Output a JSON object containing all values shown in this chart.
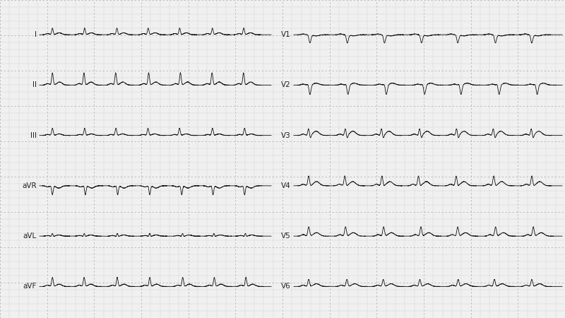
{
  "background_color": "#f0f0f0",
  "grid_color": "#b0b0b0",
  "ecg_line_color": "#111111",
  "leads_left": [
    "I",
    "II",
    "III",
    "aVR",
    "aVL",
    "aVF"
  ],
  "leads_right": [
    "V1",
    "V2",
    "V3",
    "V4",
    "V5",
    "V6"
  ],
  "heart_rate": 72,
  "figsize": [
    8.0,
    4.5
  ],
  "dpi": 100,
  "sample_rate": 500,
  "duration": 6.0,
  "morphologies": {
    "I": {
      "P": [
        0.06,
        0.045,
        0.13
      ],
      "Q": [
        -0.03,
        0.012,
        0.22
      ],
      "R": [
        0.35,
        0.022,
        0.255
      ],
      "S": [
        -0.04,
        0.018,
        0.285
      ],
      "T": [
        0.1,
        0.065,
        0.43
      ]
    },
    "II": {
      "P": [
        0.08,
        0.045,
        0.13
      ],
      "Q": [
        -0.04,
        0.012,
        0.22
      ],
      "R": [
        0.65,
        0.022,
        0.255
      ],
      "S": [
        -0.05,
        0.018,
        0.285
      ],
      "T": [
        0.16,
        0.065,
        0.44
      ]
    },
    "III": {
      "P": [
        0.05,
        0.045,
        0.13
      ],
      "Q": [
        -0.02,
        0.012,
        0.22
      ],
      "R": [
        0.38,
        0.022,
        0.255
      ],
      "S": [
        -0.03,
        0.018,
        0.285
      ],
      "T": [
        0.08,
        0.065,
        0.43
      ]
    },
    "aVR": {
      "P": [
        -0.06,
        0.045,
        0.13
      ],
      "Q": [
        0.02,
        0.012,
        0.22
      ],
      "R": [
        -0.3,
        0.018,
        0.248
      ],
      "S": [
        0.0,
        0.018,
        0.28
      ],
      "T": [
        -0.12,
        0.065,
        0.42
      ],
      "R2": [
        -0.2,
        0.018,
        0.262
      ]
    },
    "aVL": {
      "P": [
        0.03,
        0.045,
        0.13
      ],
      "Q": [
        -0.04,
        0.012,
        0.22
      ],
      "R": [
        0.15,
        0.02,
        0.255
      ],
      "S": [
        -0.06,
        0.018,
        0.28
      ],
      "T": [
        0.06,
        0.065,
        0.42
      ]
    },
    "aVF": {
      "P": [
        0.07,
        0.045,
        0.13
      ],
      "Q": [
        -0.03,
        0.012,
        0.22
      ],
      "R": [
        0.48,
        0.022,
        0.255
      ],
      "S": [
        -0.04,
        0.018,
        0.285
      ],
      "T": [
        0.12,
        0.065,
        0.43
      ]
    },
    "V1": {
      "P": [
        0.04,
        0.04,
        0.13
      ],
      "Q": [
        0.0,
        0.01,
        0.22
      ],
      "R": [
        0.1,
        0.018,
        0.25
      ],
      "S": [
        -0.45,
        0.025,
        0.278
      ],
      "T": [
        -0.06,
        0.065,
        0.42
      ]
    },
    "V2": {
      "P": [
        0.05,
        0.04,
        0.13
      ],
      "Q": [
        0.0,
        0.01,
        0.22
      ],
      "R": [
        0.18,
        0.02,
        0.25
      ],
      "S": [
        -0.55,
        0.025,
        0.278
      ],
      "T": [
        0.1,
        0.065,
        0.42
      ]
    },
    "V3": {
      "P": [
        0.07,
        0.04,
        0.13
      ],
      "Q": [
        -0.05,
        0.015,
        0.22
      ],
      "R": [
        0.45,
        0.022,
        0.255
      ],
      "S": [
        -0.28,
        0.022,
        0.282
      ],
      "T": [
        0.22,
        0.065,
        0.42
      ]
    },
    "V4": {
      "P": [
        0.08,
        0.04,
        0.13
      ],
      "Q": [
        -0.04,
        0.013,
        0.22
      ],
      "R": [
        0.55,
        0.022,
        0.255
      ],
      "S": [
        -0.12,
        0.02,
        0.282
      ],
      "T": [
        0.22,
        0.065,
        0.43
      ]
    },
    "V5": {
      "P": [
        0.08,
        0.04,
        0.13
      ],
      "Q": [
        -0.04,
        0.013,
        0.22
      ],
      "R": [
        0.5,
        0.022,
        0.255
      ],
      "S": [
        -0.06,
        0.018,
        0.282
      ],
      "T": [
        0.18,
        0.065,
        0.43
      ]
    },
    "V6": {
      "P": [
        0.07,
        0.04,
        0.13
      ],
      "Q": [
        -0.03,
        0.013,
        0.22
      ],
      "R": [
        0.38,
        0.022,
        0.255
      ],
      "S": [
        -0.05,
        0.018,
        0.282
      ],
      "T": [
        0.14,
        0.065,
        0.43
      ]
    }
  }
}
